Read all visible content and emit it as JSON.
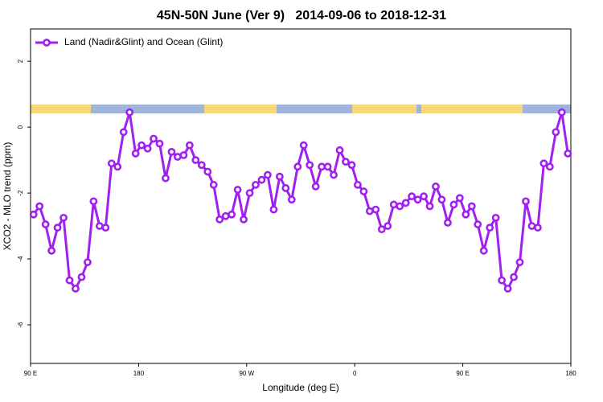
{
  "chart_data": {
    "type": "line",
    "title": "45N-50N June (Ver 9)   2014-09-06 to 2018-12-31",
    "x_label": "Longitude (deg E)",
    "y_label": "XCO2 - MLO trend (ppm)",
    "x": [
      92.5,
      97.5,
      102.5,
      107.5,
      112.5,
      117.5,
      122.5,
      127.5,
      132.5,
      137.5,
      142.5,
      147.5,
      152.5,
      157.5,
      162.5,
      167.5,
      172.5,
      177.5,
      182.5,
      187.5,
      192.5,
      197.5,
      202.5,
      207.5,
      212.5,
      217.5,
      222.5,
      227.5,
      232.5,
      237.5,
      242.5,
      247.5,
      252.5,
      257.5,
      262.5,
      267.5,
      272.5,
      277.5,
      282.5,
      287.5,
      292.5,
      297.5,
      302.5,
      307.5,
      312.5,
      317.5,
      322.5,
      327.5,
      332.5,
      337.5,
      342.5,
      347.5,
      352.5,
      357.5,
      362.5,
      367.5,
      372.5,
      377.5,
      382.5,
      387.5,
      392.5,
      397.5,
      402.5,
      407.5,
      412.5,
      417.5,
      422.5,
      427.5,
      432.5,
      437.5,
      442.5,
      447.5,
      452.5,
      457.5,
      462.5,
      467.5,
      472.5,
      477.5,
      482.5,
      487.5,
      492.5,
      497.5,
      502.5,
      507.5,
      512.5,
      517.5,
      522.5,
      527.5,
      532.5,
      537.5
    ],
    "series": [
      {
        "name": "Land (Nadir&Glint) and Ocean (Glint)",
        "color": "#a020f0",
        "values": [
          -2.65,
          -2.4,
          -2.95,
          -3.75,
          -3.05,
          -2.75,
          -4.65,
          -4.9,
          -4.55,
          -4.1,
          -2.25,
          -3.0,
          -3.05,
          -1.1,
          -1.2,
          -0.15,
          0.45,
          -0.8,
          -0.55,
          -0.65,
          -0.35,
          -0.5,
          -1.55,
          -0.75,
          -0.9,
          -0.85,
          -0.55,
          -1.0,
          -1.15,
          -1.35,
          -1.75,
          -2.8,
          -2.7,
          -2.65,
          -1.9,
          -2.8,
          -2.0,
          -1.75,
          -1.6,
          -1.45,
          -2.5,
          -1.5,
          -1.85,
          -2.2,
          -1.2,
          -0.55,
          -1.15,
          -1.8,
          -1.2,
          -1.2,
          -1.45,
          -0.7,
          -1.05,
          -1.15,
          -1.75,
          -1.95,
          -2.55,
          -2.5,
          -3.1,
          -3.0,
          -2.35,
          -2.4,
          -2.3,
          -2.1,
          -2.2,
          -2.1,
          -2.4,
          -1.8,
          -2.2,
          -2.9,
          -2.35,
          -2.15,
          -2.65,
          -2.4,
          -2.95,
          -3.75,
          -3.05,
          -2.75,
          -4.65,
          -4.9,
          -4.55,
          -4.1,
          -2.25,
          -3.0,
          -3.05,
          -1.1,
          -1.2,
          -0.15,
          0.45,
          -0.8
        ]
      }
    ],
    "xlim": [
      90,
      540
    ],
    "xticks": [
      {
        "value": 90,
        "label": "90 E"
      },
      180,
      {
        "value": 270,
        "label": "90 W"
      },
      {
        "value": 360,
        "label": "0"
      },
      {
        "value": 450,
        "label": "90 E"
      },
      {
        "value": 540,
        "label": "180"
      }
    ],
    "ylim": [
      -7.17,
      2.98
    ],
    "yticks": [
      -6,
      -4,
      -2,
      0,
      2
    ],
    "legend": "topleft",
    "grid": false
  }
}
